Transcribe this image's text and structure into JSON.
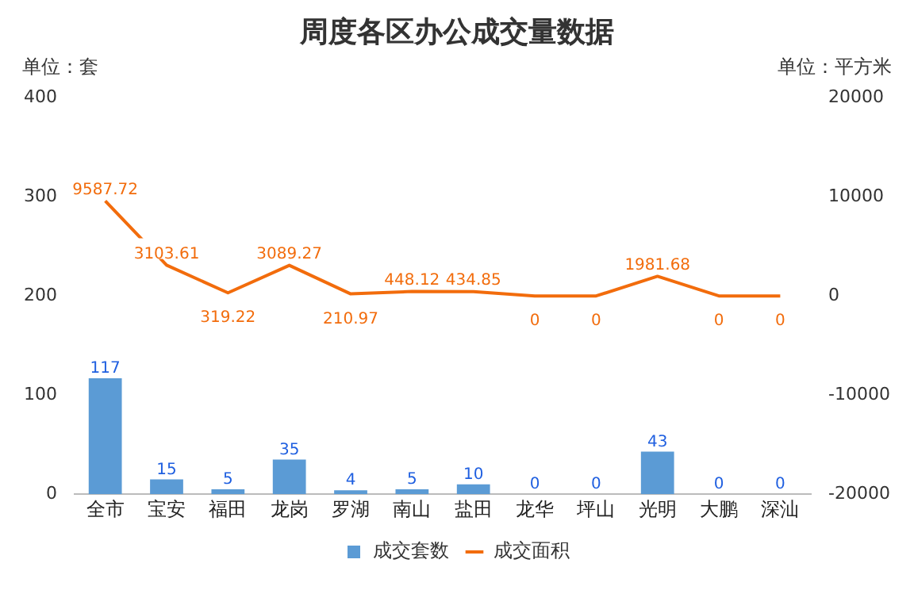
{
  "chart_data": {
    "type": "bar",
    "title": "周度各区办公成交量数据",
    "ylabel": "单位：套",
    "y2label": "单位：平方米",
    "categories": [
      "全市",
      "宝安",
      "福田",
      "龙岗",
      "罗湖",
      "南山",
      "盐田",
      "龙华",
      "坪山",
      "光明",
      "大鹏",
      "深汕"
    ],
    "series": [
      {
        "name": "成交套数",
        "color": "#5b9bd5",
        "values": [
          117,
          15,
          5,
          35,
          4,
          5,
          10,
          0,
          0,
          43,
          0,
          0
        ]
      },
      {
        "name": "成交面积",
        "type": "line",
        "axis": "y2",
        "color": "#f26c0c",
        "marker": "none",
        "values": [
          9587.72,
          3103.61,
          319.22,
          3089.27,
          210.97,
          448.12,
          434.85,
          0,
          0,
          1981.68,
          0,
          0
        ]
      }
    ],
    "ylim": [
      0,
      400
    ],
    "yticks": [
      0,
      100,
      200,
      300,
      400
    ],
    "y2lim": [
      -20000,
      20000
    ],
    "y2ticks": [
      -20000,
      -10000,
      0,
      10000,
      20000
    ],
    "data_labels": true,
    "grid": false,
    "legend": "bottom"
  }
}
